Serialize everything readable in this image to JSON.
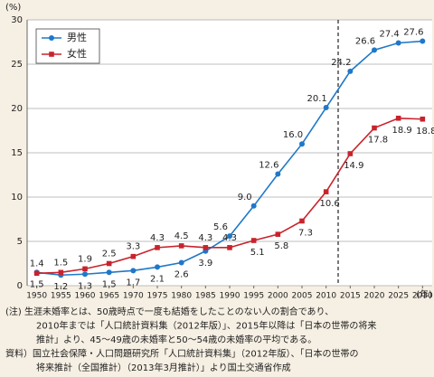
{
  "chart_data": {
    "type": "line",
    "y_unit": "(%)",
    "x_unit": "(年)",
    "x": [
      1950,
      1955,
      1960,
      1965,
      1970,
      1975,
      1980,
      1985,
      1990,
      1995,
      2000,
      2005,
      2010,
      2015,
      2020,
      2025,
      2030
    ],
    "series": [
      {
        "name": "男性",
        "color": "#1f78c8",
        "marker": "circle",
        "values": [
          1.5,
          1.2,
          1.3,
          1.5,
          1.7,
          2.1,
          2.6,
          3.9,
          5.6,
          9.0,
          12.6,
          16.0,
          20.1,
          24.2,
          26.6,
          27.4,
          27.6
        ],
        "value_labels": [
          "1.5",
          "1.2",
          "1.3",
          "1.5",
          "1.7",
          "2.1",
          "2.6",
          "3.9",
          "5.6",
          "9.0",
          "12.6",
          "16.0",
          "20.1",
          "24.2",
          "26.6",
          "27.4",
          "27.6"
        ]
      },
      {
        "name": "女性",
        "color": "#c8232c",
        "marker": "square",
        "values": [
          1.4,
          1.5,
          1.9,
          2.5,
          3.3,
          4.3,
          4.5,
          4.3,
          4.3,
          5.1,
          5.8,
          7.3,
          10.6,
          14.9,
          17.8,
          18.9,
          18.8
        ],
        "value_labels": [
          "1.4",
          "1.5",
          "1.9",
          "2.5",
          "3.3",
          "4.3",
          "4.5",
          "4.3",
          "4.3",
          "5.1",
          "5.8",
          "7.3",
          "10.6",
          "14.9",
          "17.8",
          "18.9",
          "18.8"
        ]
      }
    ],
    "xlim": [
      1948,
      2032
    ],
    "xticks": [
      1950,
      1955,
      1960,
      1965,
      1970,
      1975,
      1980,
      1985,
      1990,
      1995,
      2000,
      2005,
      2010,
      2015,
      2020,
      2025,
      2030
    ],
    "ylim": [
      0,
      30
    ],
    "yticks": [
      0,
      5,
      10,
      15,
      20,
      25,
      30
    ],
    "grid": true,
    "reference_line_x": 2012.5,
    "legend": "upper left",
    "notes": [
      "(注)  生涯未婚率とは、50歳時点で一度も結婚をしたことのない人の割合であり、",
      "2010年までは「人口統計資料集（2012年版）」、2015年以降は「日本の世帯の将来",
      "推計」より、45～49歳の未婚率と50～54歳の未婚率の平均である。",
      "資料）国立社会保障・人口問題研究所「人口統計資料集」（2012年版）、「日本の世帯の",
      "将来推計（全国推計）（2013年3月推計）」より国土交通省作成"
    ]
  }
}
